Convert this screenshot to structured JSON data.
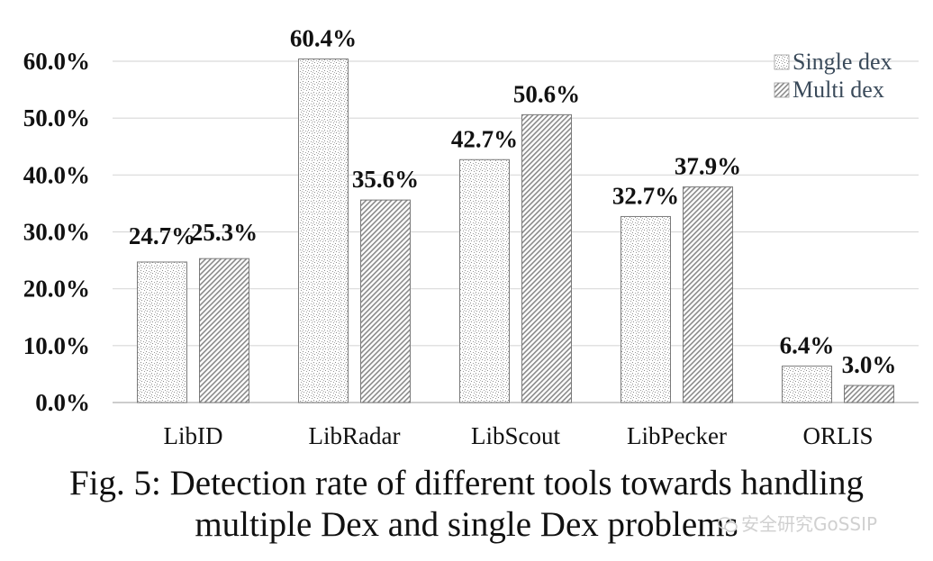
{
  "chart_data": {
    "type": "bar",
    "title": "",
    "xlabel": "",
    "ylabel": "",
    "categories": [
      "LibID",
      "LibRadar",
      "LibScout",
      "LibPecker",
      "ORLIS"
    ],
    "series": [
      {
        "name": "Single dex",
        "values": [
          24.7,
          60.4,
          42.7,
          32.7,
          6.4
        ],
        "labels": [
          "24.7%",
          "60.4%",
          "42.7%",
          "32.7%",
          "6.4%"
        ],
        "pattern": "stipple"
      },
      {
        "name": "Multi dex",
        "values": [
          25.3,
          35.6,
          50.6,
          37.9,
          3.0
        ],
        "labels": [
          "25.3%",
          "35.6%",
          "50.6%",
          "37.9%",
          "3.0%"
        ],
        "pattern": "hatch"
      }
    ],
    "ylim": [
      0,
      60
    ],
    "yticks": [
      "0.0%",
      "10.0%",
      "20.0%",
      "30.0%",
      "40.0%",
      "50.0%",
      "60.0%"
    ],
    "ytick_values": [
      0,
      10,
      20,
      30,
      40,
      50,
      60
    ],
    "grid": true,
    "legend_position": "top-right"
  },
  "caption": {
    "line1": "Fig. 5: Detection rate of different tools towards handling",
    "line2": "multiple Dex and single Dex problems"
  },
  "watermark": {
    "text": "安全研究GoSSIP",
    "icon": "wechat-icon"
  },
  "colors": {
    "bar_border": "#7a7a7a",
    "pattern_ink": "#808080",
    "grid": "#d9d9d9",
    "text": "#111111"
  }
}
